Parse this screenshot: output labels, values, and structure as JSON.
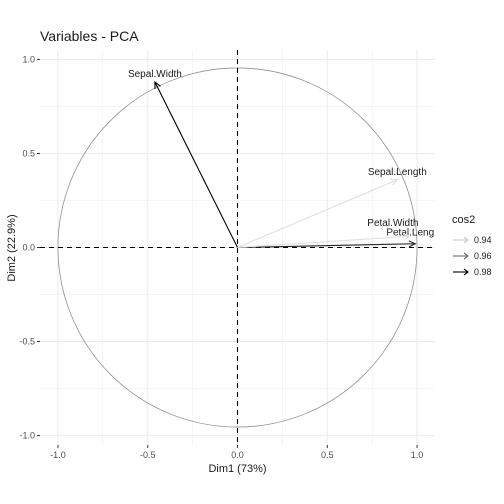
{
  "chart_data": {
    "type": "scatter",
    "subtype": "pca-variable-correlation-circle",
    "title": "Variables - PCA",
    "xlabel": "Dim1 (73%)",
    "ylabel": "Dim2 (22.9%)",
    "xlim": [
      -1.1,
      1.1
    ],
    "ylim": [
      -1.05,
      1.05
    ],
    "x_ticks": [
      -1.0,
      -0.5,
      0.0,
      0.5,
      1.0
    ],
    "x_tick_labels": [
      "-1.0",
      "-0.5",
      "0.0",
      "0.5",
      "1.0"
    ],
    "y_ticks": [
      -1.0,
      -0.5,
      0.0,
      0.5,
      1.0
    ],
    "y_tick_labels": [
      "-1.0",
      "-0.5",
      "0.0",
      "0.5",
      "1.0"
    ],
    "grid": true,
    "unit_circle": true,
    "reference_lines": [
      0,
      0
    ],
    "variables": [
      {
        "name": "Sepal.Length",
        "x": 0.89,
        "y": 0.36,
        "cos2": 0.93
      },
      {
        "name": "Sepal.Width",
        "x": -0.46,
        "y": 0.88,
        "cos2": 0.99
      },
      {
        "name": "Petal.Length",
        "label": "Petal.Leng",
        "x": 0.99,
        "y": 0.02,
        "cos2": 0.98
      },
      {
        "name": "Petal.Width",
        "x": 0.96,
        "y": 0.06,
        "cos2": 0.93
      }
    ],
    "legend": {
      "title": "cos2",
      "placement": "right",
      "entries": [
        {
          "label": "0.94",
          "color": "#c8c8c8"
        },
        {
          "label": "0.96",
          "color": "#6e6e6e"
        },
        {
          "label": "0.98",
          "color": "#000000"
        }
      ]
    },
    "colors": {
      "cos2_low": "#e0e0e0",
      "cos2_high": "#000000",
      "circle": "#909090",
      "grid": "#ebebeb"
    }
  }
}
